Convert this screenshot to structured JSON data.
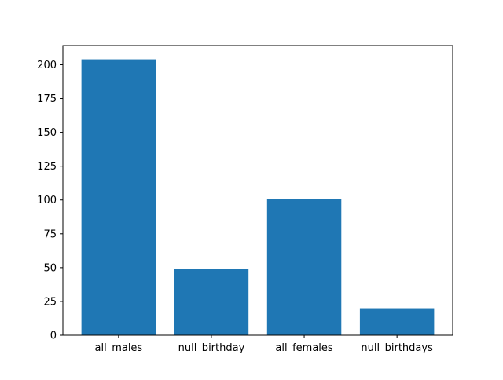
{
  "chart_data": {
    "type": "bar",
    "title": "",
    "xlabel": "",
    "ylabel": "",
    "categories": [
      "all_males",
      "null_birthday",
      "all_females",
      "null_birthdays"
    ],
    "values": [
      204,
      49,
      101,
      20
    ],
    "ylim": [
      0,
      214.2
    ],
    "yticks": [
      0,
      25,
      50,
      75,
      100,
      125,
      150,
      175,
      200
    ],
    "grid": false,
    "legend": "none",
    "bar_color": "#1f77b4"
  }
}
